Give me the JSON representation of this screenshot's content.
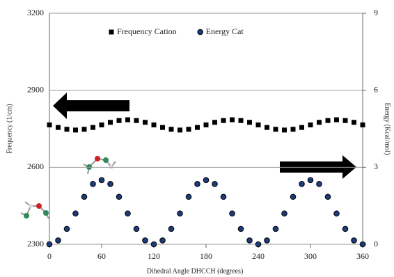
{
  "chart_data": {
    "type": "scatter",
    "x_label": "Dihedral Angle DHCCH (degrees)",
    "y_label": "Frequency (1/cm)",
    "y2_label": "Energy (Kcal/mol)",
    "x": [
      0,
      10,
      20,
      30,
      40,
      50,
      60,
      70,
      80,
      90,
      100,
      110,
      120,
      130,
      140,
      150,
      160,
      170,
      180,
      190,
      200,
      210,
      220,
      230,
      240,
      250,
      260,
      270,
      280,
      290,
      300,
      310,
      320,
      330,
      340,
      350,
      360
    ],
    "series": [
      {
        "name": "Frequency Cation",
        "color": "#000000",
        "marker": "square",
        "values": [
          2765,
          2755,
          2748,
          2745,
          2748,
          2755,
          2765,
          2775,
          2782,
          2785,
          2782,
          2775,
          2765,
          2755,
          2748,
          2745,
          2748,
          2755,
          2765,
          2775,
          2782,
          2785,
          2782,
          2775,
          2765,
          2755,
          2748,
          2745,
          2748,
          2755,
          2765,
          2775,
          2782,
          2785,
          2782,
          2775,
          2765
        ]
      },
      {
        "name": "Energy Cat",
        "color": "#1f3a7a",
        "marker": "circle",
        "axis": "y2",
        "values": [
          0,
          0.15,
          0.6,
          1.2,
          1.85,
          2.35,
          2.5,
          2.35,
          1.85,
          1.2,
          0.6,
          0.15,
          0,
          0.15,
          0.6,
          1.2,
          1.85,
          2.35,
          2.5,
          2.35,
          1.85,
          1.2,
          0.6,
          0.15,
          0,
          0.15,
          0.6,
          1.2,
          1.85,
          2.35,
          2.5,
          2.35,
          1.85,
          1.2,
          0.6,
          0.15,
          0
        ]
      }
    ],
    "xlim": [
      0,
      360
    ],
    "xticks": [
      0,
      60,
      120,
      180,
      240,
      300,
      360
    ],
    "ylim": [
      2300,
      3200
    ],
    "yticks": [
      2300,
      2600,
      2900,
      3200
    ],
    "y2lim": [
      0,
      9
    ],
    "y2ticks": [
      0,
      3,
      6,
      9
    ],
    "grid": true,
    "legend": "top"
  }
}
